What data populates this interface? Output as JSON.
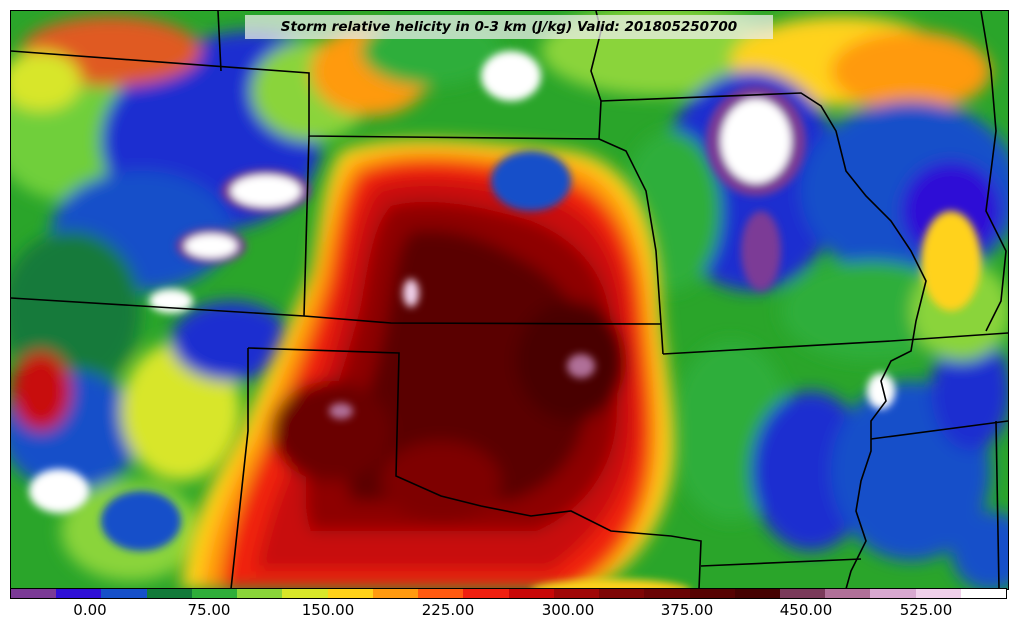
{
  "title": "Storm relative helicity in 0-3 km (J/kg) Valid: 201805250700",
  "colorbar": {
    "colors": [
      "#7b3a96",
      "#2f0fd6",
      "#1650c9",
      "#127a3a",
      "#2fae3a",
      "#8ad43a",
      "#d8e62a",
      "#ffd21a",
      "#ff9a10",
      "#ff5a10",
      "#f02010",
      "#c80808",
      "#a00808",
      "#7e0606",
      "#6a0405",
      "#560303",
      "#450202",
      "#7a3a5a",
      "#b07098",
      "#d8a8d0",
      "#f0d0ea",
      "#ffffff"
    ],
    "tick_labels": [
      "0.00",
      "75.00",
      "150.00",
      "225.00",
      "300.00",
      "375.00",
      "450.00",
      "525.00"
    ]
  },
  "map": {
    "field": "storm relative helicity",
    "projection": "lambert-conformal",
    "region": "central United States",
    "boundaries": "state borders"
  }
}
